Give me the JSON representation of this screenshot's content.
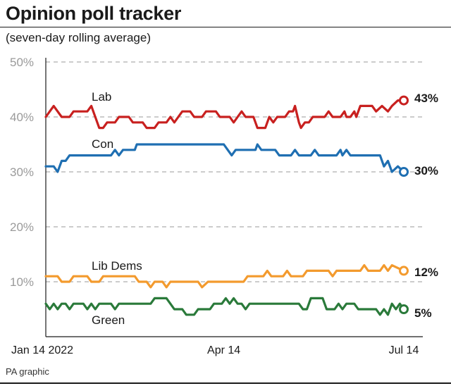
{
  "header": {
    "title": "Opinion poll tracker",
    "subtitle": "(seven-day rolling average)",
    "source": "PA graphic"
  },
  "chart_data": {
    "type": "line",
    "title": "Opinion poll tracker",
    "subtitle": "(seven-day rolling average)",
    "xlabel": "",
    "ylabel": "",
    "x_ticks": [
      "Jan 14 2022",
      "Apr 14",
      "Jul 14"
    ],
    "y_ticks": [
      "50%",
      "40%",
      "30%",
      "20%",
      "10%"
    ],
    "ylim": [
      0,
      50
    ],
    "xlim": [
      "2022-01-14",
      "2022-07-14"
    ],
    "grid": "horizontal dashed",
    "legend": "inline labels",
    "series": [
      {
        "name": "Lab",
        "color": "#c8201f",
        "final_label": "43%",
        "points": [
          [
            "2022-01-14",
            40
          ],
          [
            "2022-01-16",
            41
          ],
          [
            "2022-01-18",
            42
          ],
          [
            "2022-01-20",
            41
          ],
          [
            "2022-01-22",
            40
          ],
          [
            "2022-01-26",
            40
          ],
          [
            "2022-01-28",
            41
          ],
          [
            "2022-02-04",
            41
          ],
          [
            "2022-02-06",
            42
          ],
          [
            "2022-02-08",
            40
          ],
          [
            "2022-02-10",
            38
          ],
          [
            "2022-02-12",
            38
          ],
          [
            "2022-02-14",
            39
          ],
          [
            "2022-02-18",
            39
          ],
          [
            "2022-02-20",
            40
          ],
          [
            "2022-02-25",
            40
          ],
          [
            "2022-02-27",
            39
          ],
          [
            "2022-03-04",
            39
          ],
          [
            "2022-03-06",
            38
          ],
          [
            "2022-03-10",
            38
          ],
          [
            "2022-03-12",
            39
          ],
          [
            "2022-03-16",
            39
          ],
          [
            "2022-03-18",
            40
          ],
          [
            "2022-03-20",
            39
          ],
          [
            "2022-03-22",
            40
          ],
          [
            "2022-03-24",
            41
          ],
          [
            "2022-03-28",
            41
          ],
          [
            "2022-03-30",
            40
          ],
          [
            "2022-04-03",
            40
          ],
          [
            "2022-04-05",
            41
          ],
          [
            "2022-04-10",
            41
          ],
          [
            "2022-04-12",
            40
          ],
          [
            "2022-04-17",
            40
          ],
          [
            "2022-04-19",
            39
          ],
          [
            "2022-04-21",
            40
          ],
          [
            "2022-04-23",
            41
          ],
          [
            "2022-04-25",
            40
          ],
          [
            "2022-04-29",
            40
          ],
          [
            "2022-05-01",
            38
          ],
          [
            "2022-05-05",
            38
          ],
          [
            "2022-05-07",
            40
          ],
          [
            "2022-05-09",
            39
          ],
          [
            "2022-05-11",
            40
          ],
          [
            "2022-05-15",
            40
          ],
          [
            "2022-05-17",
            41
          ],
          [
            "2022-05-19",
            41
          ],
          [
            "2022-05-20",
            42
          ],
          [
            "2022-05-22",
            39
          ],
          [
            "2022-05-23",
            38
          ],
          [
            "2022-05-25",
            39
          ],
          [
            "2022-05-27",
            39
          ],
          [
            "2022-05-29",
            40
          ],
          [
            "2022-06-02",
            40
          ],
          [
            "2022-06-04",
            40
          ],
          [
            "2022-06-06",
            41
          ],
          [
            "2022-06-08",
            40
          ],
          [
            "2022-06-12",
            40
          ],
          [
            "2022-06-14",
            41
          ],
          [
            "2022-06-15",
            40
          ],
          [
            "2022-06-17",
            40
          ],
          [
            "2022-06-19",
            41
          ],
          [
            "2022-06-20",
            40
          ],
          [
            "2022-06-22",
            42
          ],
          [
            "2022-06-28",
            42
          ],
          [
            "2022-06-30",
            41
          ],
          [
            "2022-07-03",
            42
          ],
          [
            "2022-07-06",
            41
          ],
          [
            "2022-07-08",
            42
          ],
          [
            "2022-07-11",
            43
          ],
          [
            "2022-07-14",
            43
          ]
        ]
      },
      {
        "name": "Con",
        "color": "#1f6fb2",
        "final_label": "30%",
        "points": [
          [
            "2022-01-14",
            31
          ],
          [
            "2022-01-18",
            31
          ],
          [
            "2022-01-20",
            30
          ],
          [
            "2022-01-22",
            32
          ],
          [
            "2022-01-24",
            32
          ],
          [
            "2022-01-26",
            33
          ],
          [
            "2022-02-14",
            33
          ],
          [
            "2022-02-16",
            33
          ],
          [
            "2022-02-18",
            34
          ],
          [
            "2022-02-20",
            33
          ],
          [
            "2022-02-22",
            34
          ],
          [
            "2022-02-28",
            34
          ],
          [
            "2022-03-01",
            35
          ],
          [
            "2022-03-20",
            35
          ],
          [
            "2022-04-14",
            35
          ],
          [
            "2022-04-16",
            34
          ],
          [
            "2022-04-18",
            33
          ],
          [
            "2022-04-20",
            34
          ],
          [
            "2022-04-30",
            34
          ],
          [
            "2022-05-01",
            35
          ],
          [
            "2022-05-03",
            34
          ],
          [
            "2022-05-10",
            34
          ],
          [
            "2022-05-12",
            33
          ],
          [
            "2022-05-18",
            33
          ],
          [
            "2022-05-20",
            34
          ],
          [
            "2022-05-22",
            33
          ],
          [
            "2022-05-28",
            33
          ],
          [
            "2022-05-30",
            34
          ],
          [
            "2022-06-01",
            33
          ],
          [
            "2022-06-10",
            33
          ],
          [
            "2022-06-12",
            34
          ],
          [
            "2022-06-13",
            33
          ],
          [
            "2022-06-15",
            34
          ],
          [
            "2022-06-17",
            33
          ],
          [
            "2022-07-02",
            33
          ],
          [
            "2022-07-04",
            31
          ],
          [
            "2022-07-06",
            32
          ],
          [
            "2022-07-08",
            30
          ],
          [
            "2022-07-11",
            31
          ],
          [
            "2022-07-14",
            30
          ]
        ]
      },
      {
        "name": "Lib Dems",
        "color": "#f39a2d",
        "final_label": "12%",
        "points": [
          [
            "2022-01-14",
            11
          ],
          [
            "2022-01-20",
            11
          ],
          [
            "2022-01-22",
            10
          ],
          [
            "2022-01-26",
            10
          ],
          [
            "2022-01-28",
            11
          ],
          [
            "2022-02-04",
            11
          ],
          [
            "2022-02-06",
            10
          ],
          [
            "2022-02-10",
            10
          ],
          [
            "2022-02-12",
            11
          ],
          [
            "2022-02-28",
            11
          ],
          [
            "2022-03-02",
            10
          ],
          [
            "2022-03-06",
            10
          ],
          [
            "2022-03-08",
            9
          ],
          [
            "2022-03-10",
            10
          ],
          [
            "2022-03-14",
            10
          ],
          [
            "2022-03-16",
            9
          ],
          [
            "2022-03-18",
            10
          ],
          [
            "2022-04-01",
            10
          ],
          [
            "2022-04-03",
            9
          ],
          [
            "2022-04-06",
            10
          ],
          [
            "2022-04-24",
            10
          ],
          [
            "2022-04-26",
            11
          ],
          [
            "2022-05-04",
            11
          ],
          [
            "2022-05-06",
            12
          ],
          [
            "2022-05-08",
            11
          ],
          [
            "2022-05-14",
            11
          ],
          [
            "2022-05-16",
            12
          ],
          [
            "2022-05-18",
            11
          ],
          [
            "2022-05-24",
            11
          ],
          [
            "2022-05-26",
            12
          ],
          [
            "2022-06-06",
            12
          ],
          [
            "2022-06-08",
            11
          ],
          [
            "2022-06-10",
            12
          ],
          [
            "2022-06-22",
            12
          ],
          [
            "2022-06-24",
            13
          ],
          [
            "2022-06-26",
            12
          ],
          [
            "2022-07-02",
            12
          ],
          [
            "2022-07-04",
            13
          ],
          [
            "2022-07-06",
            12
          ],
          [
            "2022-07-08",
            13
          ],
          [
            "2022-07-14",
            12
          ]
        ]
      },
      {
        "name": "Green",
        "color": "#2a7a3a",
        "final_label": "5%",
        "points": [
          [
            "2022-01-14",
            6
          ],
          [
            "2022-01-16",
            5
          ],
          [
            "2022-01-18",
            6
          ],
          [
            "2022-01-20",
            5
          ],
          [
            "2022-01-22",
            6
          ],
          [
            "2022-01-24",
            6
          ],
          [
            "2022-01-26",
            5
          ],
          [
            "2022-01-28",
            6
          ],
          [
            "2022-02-02",
            6
          ],
          [
            "2022-02-04",
            5
          ],
          [
            "2022-02-06",
            6
          ],
          [
            "2022-02-08",
            5
          ],
          [
            "2022-02-10",
            6
          ],
          [
            "2022-02-16",
            6
          ],
          [
            "2022-02-18",
            5
          ],
          [
            "2022-02-20",
            6
          ],
          [
            "2022-03-08",
            6
          ],
          [
            "2022-03-10",
            7
          ],
          [
            "2022-03-16",
            7
          ],
          [
            "2022-03-18",
            6
          ],
          [
            "2022-03-20",
            5
          ],
          [
            "2022-03-24",
            5
          ],
          [
            "2022-03-26",
            4
          ],
          [
            "2022-03-30",
            4
          ],
          [
            "2022-04-01",
            5
          ],
          [
            "2022-04-07",
            5
          ],
          [
            "2022-04-09",
            6
          ],
          [
            "2022-04-13",
            6
          ],
          [
            "2022-04-15",
            7
          ],
          [
            "2022-04-17",
            6
          ],
          [
            "2022-04-19",
            7
          ],
          [
            "2022-04-21",
            6
          ],
          [
            "2022-04-23",
            6
          ],
          [
            "2022-04-25",
            5
          ],
          [
            "2022-04-27",
            6
          ],
          [
            "2022-05-22",
            6
          ],
          [
            "2022-05-24",
            5
          ],
          [
            "2022-05-26",
            5
          ],
          [
            "2022-05-28",
            7
          ],
          [
            "2022-06-03",
            7
          ],
          [
            "2022-06-05",
            5
          ],
          [
            "2022-06-09",
            5
          ],
          [
            "2022-06-11",
            6
          ],
          [
            "2022-06-13",
            5
          ],
          [
            "2022-06-15",
            6
          ],
          [
            "2022-06-19",
            6
          ],
          [
            "2022-06-21",
            5
          ],
          [
            "2022-06-30",
            5
          ],
          [
            "2022-07-02",
            4
          ],
          [
            "2022-07-04",
            5
          ],
          [
            "2022-07-06",
            4
          ],
          [
            "2022-07-08",
            6
          ],
          [
            "2022-07-10",
            5
          ],
          [
            "2022-07-12",
            6
          ],
          [
            "2022-07-14",
            5
          ]
        ]
      }
    ]
  }
}
